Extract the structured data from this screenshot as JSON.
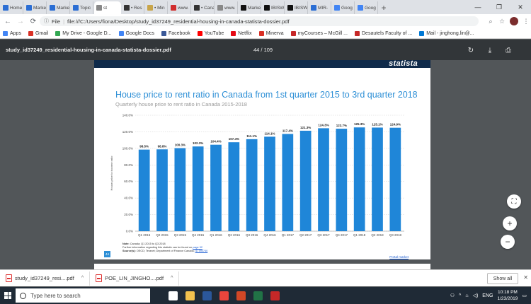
{
  "tabs": [
    {
      "label": "Home",
      "color": "#2b6ed4"
    },
    {
      "label": "Marke",
      "color": "#2b6ed4"
    },
    {
      "label": "Marke",
      "color": "#2b6ed4"
    },
    {
      "label": "Topic",
      "color": "#2b6ed4"
    },
    {
      "label": "st",
      "color": "#888888",
      "active": true
    },
    {
      "label": "• Res",
      "color": "#333333"
    },
    {
      "label": "• Min",
      "color": "#c8a54a"
    },
    {
      "label": "www.",
      "color": "#d02c2c"
    },
    {
      "label": "• Cana",
      "color": "#333333"
    },
    {
      "label": "www.",
      "color": "#888888"
    },
    {
      "label": "Marke",
      "color": "#111111"
    },
    {
      "label": "IBISW",
      "color": "#111111"
    },
    {
      "label": "IBISW",
      "color": "#111111"
    },
    {
      "label": "MIR-",
      "color": "#2b6ed4"
    },
    {
      "label": "Goog",
      "color": "#4285f4"
    },
    {
      "label": "Goog",
      "color": "#4285f4"
    }
  ],
  "new_tab_symbol": "+",
  "window_controls": {
    "minimize": "—",
    "restore": "❐",
    "close": "✕"
  },
  "address": {
    "info": "File",
    "url": "file:///C:/Users/fiona/Desktop/study_id37249_residential-housing-in-canada-statista-dossier.pdf"
  },
  "bookmarks": [
    {
      "label": "Apps",
      "color": "#4285f4"
    },
    {
      "label": "Gmail",
      "color": "#d93025"
    },
    {
      "label": "My Drive - Google D...",
      "color": "#34a853"
    },
    {
      "label": "Google Docs",
      "color": "#4285f4"
    },
    {
      "label": "Facebook",
      "color": "#3b5998"
    },
    {
      "label": "YouTube",
      "color": "#ff0000"
    },
    {
      "label": "Netflix",
      "color": "#e50914"
    },
    {
      "label": "Minerva",
      "color": "#d93025"
    },
    {
      "label": "myCourses – McGill ...",
      "color": "#c62828"
    },
    {
      "label": "Desautels Faculty of ...",
      "color": "#c62828"
    },
    {
      "label": "Mail - jinghong.lin@...",
      "color": "#0078d4"
    }
  ],
  "pdf": {
    "filename": "study_id37249_residential-housing-in-canada-statista-dossier.pdf",
    "page_indicator": "44  /  109"
  },
  "slide": {
    "brand": "statista",
    "notes_label": "Note:",
    "notes_text": "Canada; Q1 2015 to Q3 2018",
    "further_info": "Further information regarding this statistic can be found on",
    "further_info_link": "page 92",
    "source_label": "Source(s):",
    "source_text": "OECD; Teranet; Department of Finance Canada;",
    "source_link": "ID 590740",
    "page_number": "44",
    "release_link": "Portal market"
  },
  "chart_data": {
    "type": "bar",
    "title": "House price to rent ratio in Canada from 1st quarter 2015 to 3rd quarter 2018",
    "subtitle": "Quarterly house price to rent ratio in Canada 2015-2018",
    "ylabel": "House-price to income ratio",
    "xlabel": "",
    "categories": [
      "Q1 2015",
      "Q2 2015",
      "Q3 2015",
      "Q4 2015",
      "Q1 2016",
      "Q2 2016",
      "Q3 2016",
      "Q4 2016",
      "Q1 2017",
      "Q2 2017",
      "Q3 2017",
      "Q4 2017",
      "Q1 2018",
      "Q2 2018",
      "Q3 2018"
    ],
    "values": [
      98.5,
      98.8,
      100.3,
      102.3,
      104.4,
      107.4,
      111.1,
      114.1,
      117.4,
      121.3,
      124.3,
      123.7,
      125.3,
      125.1,
      124.9
    ],
    "data_labels": [
      "98.5%",
      "98.8%",
      "100.3%",
      "102.3%",
      "104.4%",
      "107.4%",
      "111.1%",
      "114.1%",
      "117.4%",
      "121.3%",
      "124.3%",
      "123.7%",
      "125.3%",
      "125.1%",
      "124.9%"
    ],
    "ylim": [
      0,
      140
    ],
    "yticks": [
      0,
      20,
      40,
      60,
      80,
      100,
      120,
      140
    ],
    "ytick_labels": [
      "0.0%",
      "20.0%",
      "40.0%",
      "60.0%",
      "80.0%",
      "100.0%",
      "120.0%",
      "140.0%"
    ],
    "grid": true,
    "bar_color": "#1f86d8"
  },
  "side_controls": {
    "fit": "⛶",
    "zoom_in": "+",
    "zoom_out": "−"
  },
  "downloads": [
    {
      "label": "study_id37249_resi....pdf"
    },
    {
      "label": "POE_LIN_JINGHO....pdf"
    }
  ],
  "download_caret": "^",
  "show_all": "Show all",
  "download_close": "✕",
  "taskbar": {
    "search_placeholder": "Type here to search",
    "apps": [
      {
        "name": "task-view",
        "color": "#ffffff"
      },
      {
        "name": "file-explorer",
        "color": "#f2c14e"
      },
      {
        "name": "word",
        "color": "#2b579a"
      },
      {
        "name": "chrome",
        "color": "#e8453c"
      },
      {
        "name": "ppt-red",
        "color": "#d24726"
      },
      {
        "name": "excel",
        "color": "#217346"
      },
      {
        "name": "app-dark",
        "color": "#c62828"
      }
    ],
    "language": "ENG",
    "time": "10:18 PM",
    "date": "1/23/2019"
  }
}
